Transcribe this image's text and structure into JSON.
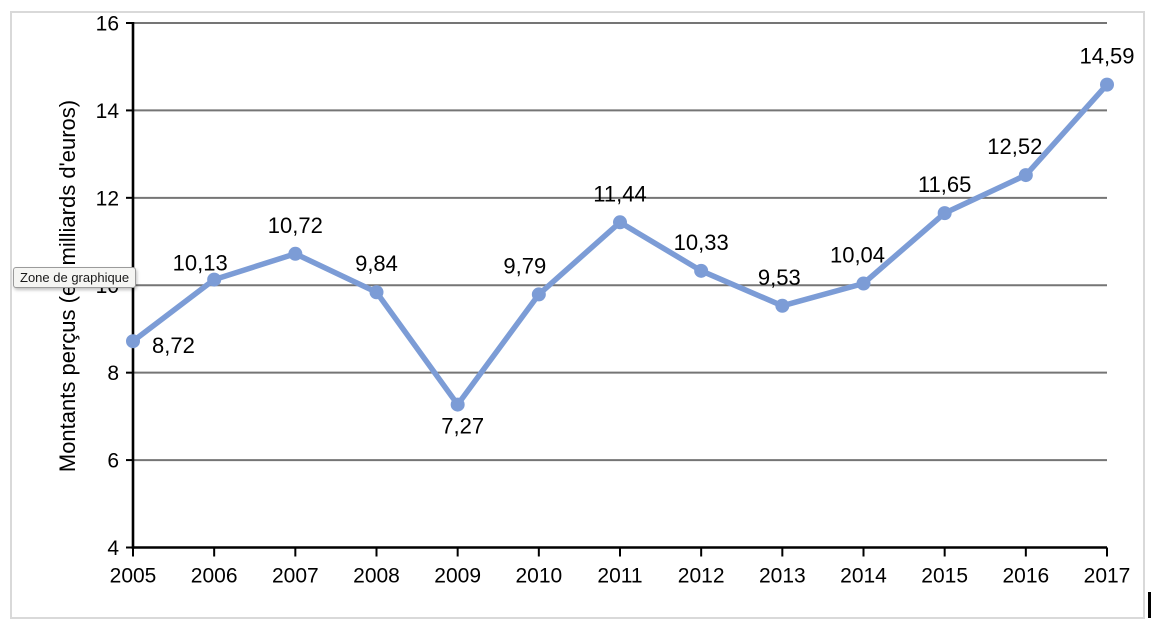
{
  "tooltip": {
    "label": "Zone de graphique"
  },
  "chart_data": {
    "type": "line",
    "title": "",
    "xlabel": "",
    "ylabel": "Montants perçus (en milliards d'euros)",
    "ylim": [
      4,
      16
    ],
    "yticks": [
      4,
      6,
      8,
      10,
      12,
      14,
      16
    ],
    "grid": true,
    "legend": "none",
    "categories": [
      "2005",
      "2006",
      "2007",
      "2008",
      "2009",
      "2010",
      "2011",
      "2012",
      "2013",
      "2014",
      "2015",
      "2016",
      "2017"
    ],
    "series": [
      {
        "name": "Montants perçus",
        "values": [
          8.72,
          10.13,
          10.72,
          9.84,
          7.27,
          9.79,
          11.44,
          10.33,
          9.53,
          10.04,
          11.65,
          12.52,
          14.59
        ],
        "data_labels": [
          "8,72",
          "10,13",
          "10,72",
          "9,84",
          "7,27",
          "9,79",
          "11,44",
          "10,33",
          "9,53",
          "10,04",
          "11,65",
          "12,52",
          "14,59"
        ],
        "label_placements": [
          {
            "pos": "right",
            "dx": 0
          },
          {
            "pos": "above-near",
            "dx": -14
          },
          {
            "pos": "above",
            "dx": 0
          },
          {
            "pos": "above",
            "dx": 0
          },
          {
            "pos": "below",
            "dx": 5
          },
          {
            "pos": "above",
            "dx": -14
          },
          {
            "pos": "above",
            "dx": 0
          },
          {
            "pos": "above",
            "dx": 0
          },
          {
            "pos": "above",
            "dx": -3
          },
          {
            "pos": "above",
            "dx": -6
          },
          {
            "pos": "above",
            "dx": 0
          },
          {
            "pos": "above",
            "dx": -11
          },
          {
            "pos": "above",
            "dx": 0
          }
        ]
      }
    ],
    "colors": {
      "line": "#7C9CD6",
      "marker": "#7C9CD6",
      "gridline": "#757575",
      "axis": "#000000",
      "text": "#000000"
    }
  }
}
